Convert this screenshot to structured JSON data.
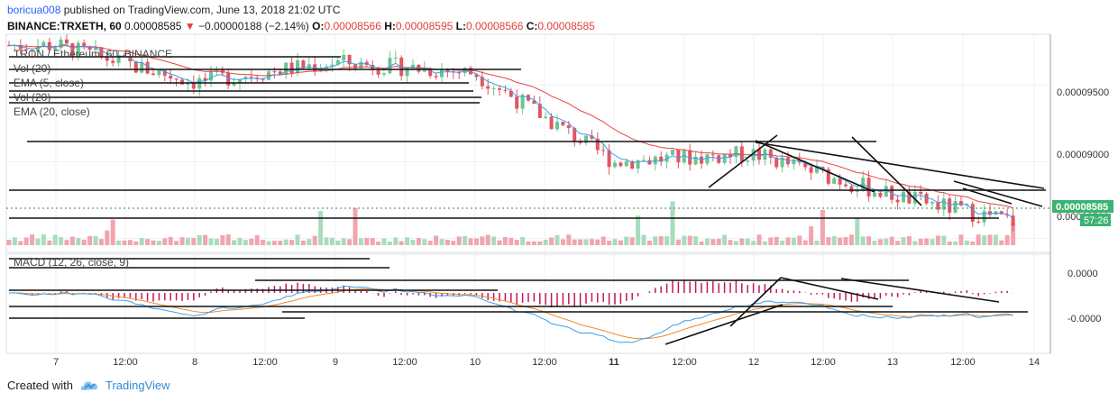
{
  "header": {
    "user": "boricua008",
    "published_text": "published on TradingView.com, June 13, 2018 21:02 UTC",
    "symbol": "BINANCE:TRXETH, 60",
    "last": "0.00008585",
    "arrow": "▼",
    "change": "−0.00000188 (−2.14%)",
    "o_label": "O:",
    "o": "0.00008566",
    "h_label": "H:",
    "h": "0.00008595",
    "l_label": "L:",
    "l": "0.00008566",
    "c_label": "C:",
    "c": "0.00008585"
  },
  "legend": {
    "title": "TRON / Ethereum, 60, BINANCE",
    "items": [
      "Vol (20)",
      "EMA (5, close)",
      "Vol (20)",
      "EMA (20, close)"
    ]
  },
  "macd_legend": "MACD (12, 26, close, 9)",
  "price_axis": [
    "0.00009500",
    "0.00009000",
    "0.00008500"
  ],
  "last_price_label": "0.00008585",
  "countdown": "57:26",
  "macd_axis": [
    "0.0000",
    "-0.0000"
  ],
  "time_axis": [
    "7",
    "12:00",
    "8",
    "12:00",
    "9",
    "12:00",
    "10",
    "12:00",
    "11",
    "12:00",
    "12",
    "12:00",
    "13",
    "12:00",
    "14"
  ],
  "footer": {
    "created_with": "Created with",
    "brand": "TradingView"
  },
  "colors": {
    "up": "#6cc493",
    "down": "#e25560",
    "ema_fast": "#e84343",
    "ema_slow": "#3aa0e8",
    "macd": "#3aa0e8",
    "signal": "#f08a24",
    "hist": "#c2185b",
    "accent": "#2962ff"
  },
  "chart_data": {
    "type": "candlestick",
    "title": "TRON / Ethereum, 60, BINANCE",
    "x_ticks": [
      "7",
      "12:00",
      "8",
      "12:00",
      "9",
      "12:00",
      "10",
      "12:00",
      "11",
      "12:00",
      "12",
      "12:00",
      "13",
      "12:00",
      "14"
    ],
    "y_ticks": [
      9.5e-05,
      9e-05,
      8.5e-05
    ],
    "ylim": [
      8.42e-05,
      9.82e-05
    ],
    "close_path_by_day": [
      {
        "day": "7",
        "close": 9.76e-05
      },
      {
        "day": "8",
        "close": 9.52e-05
      },
      {
        "day": "9",
        "close": 9.65e-05
      },
      {
        "day": "10",
        "close": 9.58e-05
      },
      {
        "day": "11",
        "close": 9e-05
      },
      {
        "day": "12",
        "close": 9.05e-05
      },
      {
        "day": "13",
        "close": 8.78e-05
      },
      {
        "day": "14",
        "close": 8.58e-05
      }
    ],
    "last_close": 8.585e-05
  }
}
